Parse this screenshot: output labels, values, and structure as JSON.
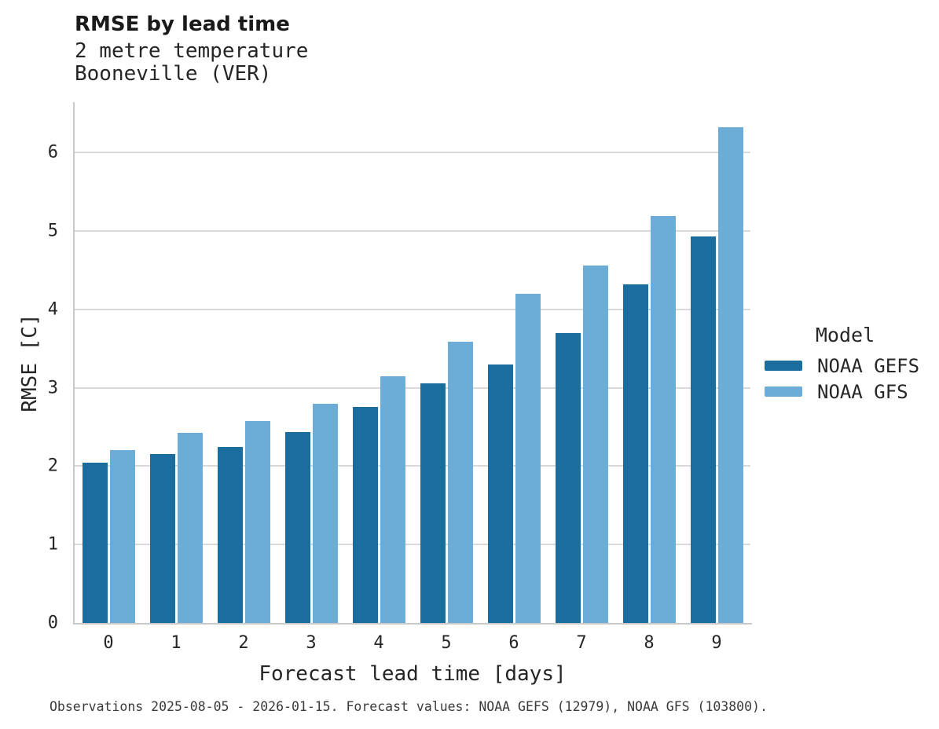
{
  "header": {
    "title": "RMSE by lead time",
    "subtitle_lines": [
      "2 metre temperature",
      "Booneville (VER)"
    ]
  },
  "legend": {
    "title": "Model",
    "items": [
      {
        "label": "NOAA GEFS",
        "color": "#1b6d9e"
      },
      {
        "label": "NOAA GFS",
        "color": "#6badd6"
      }
    ]
  },
  "footer": {
    "caption": "Observations 2025-08-05 - 2026-01-15. Forecast values: NOAA GEFS (12979), NOAA GFS (103800)."
  },
  "colors": {
    "gefs_bar": "#1b6d9e",
    "gfs_bar": "#6badd6",
    "gridline": "#d9d9d9",
    "spine": "#c9c9c9",
    "text": "#262626",
    "footer_text": "#3a3a3a"
  },
  "chart_data": {
    "type": "bar",
    "title": "RMSE by lead time",
    "subtitle": [
      "2 metre temperature",
      "Booneville (VER)"
    ],
    "xlabel": "Forecast lead time [days]",
    "ylabel": "RMSE [C]",
    "categories": [
      0,
      1,
      2,
      3,
      4,
      5,
      6,
      7,
      8,
      9
    ],
    "series": [
      {
        "name": "NOAA GEFS",
        "color": "#1b6d9e",
        "values": [
          2.04,
          2.16,
          2.25,
          2.44,
          2.76,
          3.06,
          3.3,
          3.7,
          4.32,
          4.93
        ]
      },
      {
        "name": "NOAA GFS",
        "color": "#6badd6",
        "values": [
          2.21,
          2.43,
          2.58,
          2.8,
          3.15,
          3.59,
          4.2,
          4.56,
          5.19,
          6.32
        ]
      }
    ],
    "ylim": [
      0,
      6.645
    ],
    "yticks": [
      0,
      1,
      2,
      3,
      4,
      5,
      6
    ],
    "grid": "horizontal",
    "legend_position": "right",
    "legend_title": "Model",
    "note": "Observations 2025-08-05 - 2026-01-15. Forecast values: NOAA GEFS (12979), NOAA GFS (103800)."
  }
}
